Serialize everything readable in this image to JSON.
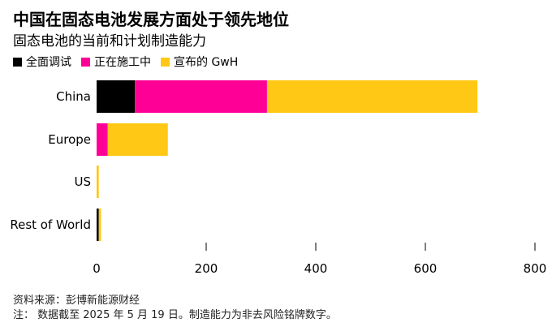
{
  "chart_data": {
    "type": "bar",
    "orientation": "horizontal",
    "stacked": true,
    "title": "中国在固态电池发展方面处于领先地位",
    "subtitle": "固态电池的当前和计划制造能力",
    "categories": [
      "China",
      "Europe",
      "US",
      "Rest of World"
    ],
    "series": [
      {
        "name": "全面调试",
        "color": "#000000",
        "values": [
          70,
          0,
          0,
          4
        ]
      },
      {
        "name": "正在施工中",
        "color": "#ff0096",
        "values": [
          241,
          20,
          0,
          0
        ]
      },
      {
        "name": "宣布的 GwH",
        "color": "#ffc814",
        "values": [
          384,
          110,
          4,
          4
        ]
      }
    ],
    "xlim": [
      0,
      800
    ],
    "xticks": [
      "0",
      "200",
      "400",
      "600",
      "800"
    ],
    "xlabel": "",
    "ylabel": "",
    "legend_position": "top-left",
    "grid": false
  },
  "footer": {
    "source": "资料来源：彭博新能源财经",
    "note": "注： 数据截至 2025 年 5 月 19 日。制造能力为非去风险铭牌数字。"
  }
}
